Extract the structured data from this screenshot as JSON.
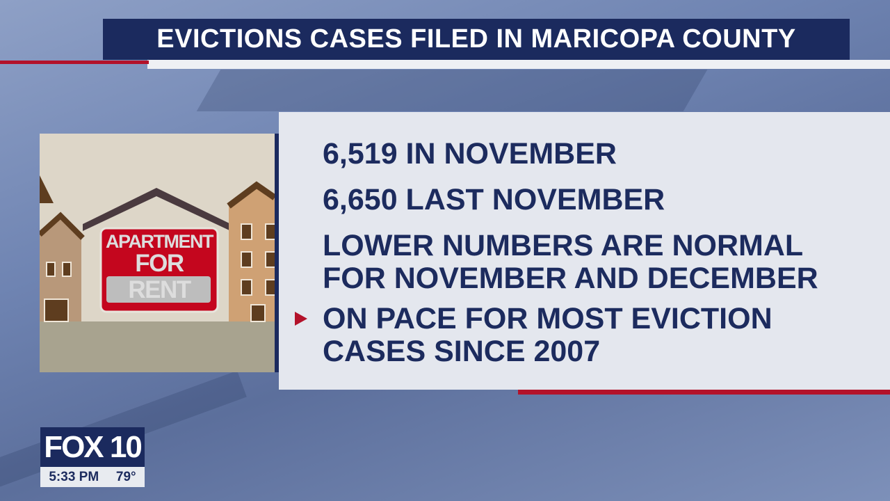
{
  "header": {
    "title": "EVICTIONS CASES FILED IN MARICOPA COUNTY"
  },
  "photo": {
    "sign_text_line1": "APARTMENT",
    "sign_text_line2": "FOR RENT"
  },
  "facts": {
    "line1": "6,519 IN NOVEMBER",
    "line2": "6,650 LAST NOVEMBER",
    "line3a": "LOWER NUMBERS ARE NORMAL",
    "line3b": "FOR NOVEMBER AND DECEMBER",
    "line4a": "ON PACE FOR MOST EVICTION",
    "line4b": "CASES SINCE 2007",
    "active_bullet_icon": "triangle-right"
  },
  "bug": {
    "station": "FOX 10",
    "time": "5:33 PM",
    "temperature": "79°"
  },
  "colors": {
    "navy": "#1b2a5e",
    "red": "#b3122a",
    "panel": "#e4e7ee"
  }
}
